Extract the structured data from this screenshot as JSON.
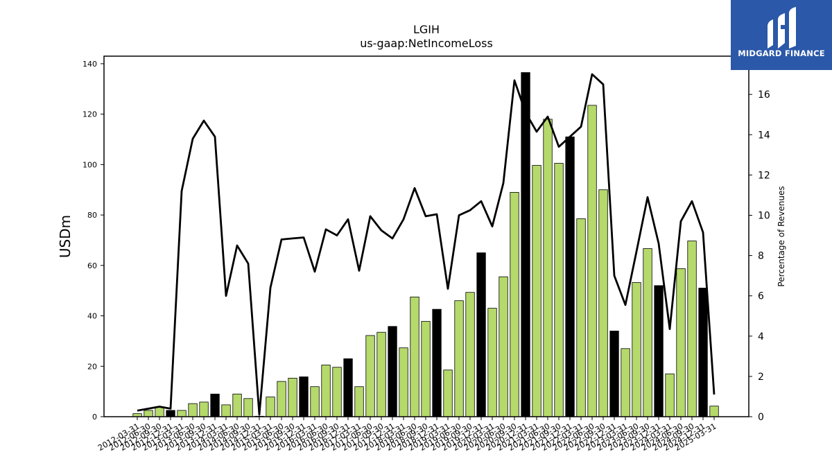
{
  "brand": {
    "name": "MIDGARD FINANCE",
    "logo_icon": "midgard-logo-icon",
    "color": "#2b58a8"
  },
  "chart_data": {
    "type": "bar",
    "title": "LGIH",
    "subtitle": "us-gaap:NetIncomeLoss",
    "ylabel": "USDm",
    "y2label": "Percentage of Revenues",
    "ylim": [
      0,
      143
    ],
    "y2lim": [
      0,
      17.9
    ],
    "yticks": [
      0,
      20,
      40,
      60,
      80,
      100,
      120,
      140
    ],
    "y2ticks": [
      0,
      2,
      4,
      6,
      8,
      10,
      12,
      14,
      16
    ],
    "grid": false,
    "categories": [
      "2012-03-31",
      "2012-06-30",
      "2012-09-30",
      "2012-12-31",
      "2013-03-31",
      "2013-06-30",
      "2013-09-30",
      "2013-12-31",
      "2014-03-31",
      "2014-06-30",
      "2014-09-30",
      "2014-12-31",
      "2015-03-31",
      "2015-06-30",
      "2015-09-30",
      "2015-12-31",
      "2016-03-31",
      "2016-06-30",
      "2016-09-30",
      "2016-12-31",
      "2017-03-31",
      "2017-06-30",
      "2017-09-30",
      "2017-12-31",
      "2018-03-31",
      "2018-06-30",
      "2018-09-30",
      "2018-12-31",
      "2019-03-31",
      "2019-06-30",
      "2019-09-30",
      "2019-12-31",
      "2020-03-31",
      "2020-06-30",
      "2020-09-30",
      "2020-12-31",
      "2021-03-31",
      "2021-06-30",
      "2021-09-30",
      "2021-12-31",
      "2022-03-31",
      "2022-06-30",
      "2022-09-30",
      "2022-12-31",
      "2023-03-31",
      "2023-06-30",
      "2023-09-30",
      "2023-12-31",
      "2024-03-31",
      "2024-06-30",
      "2024-09-30",
      "2024-12-31",
      "2025-03-31"
    ],
    "series": [
      {
        "type": "bar",
        "axis": "left",
        "values": [
          1.2,
          2.5,
          3.8,
          2.5,
          2.5,
          5.2,
          5.8,
          9.0,
          4.7,
          9.0,
          7.2,
          0.2,
          7.8,
          14.0,
          15.3,
          15.8,
          11.9,
          20.5,
          19.6,
          23.0,
          11.9,
          32.2,
          33.5,
          35.8,
          27.3,
          47.5,
          37.8,
          42.6,
          18.5,
          46.0,
          49.3,
          65.0,
          43.0,
          55.5,
          89.0,
          136.5,
          99.7,
          118.0,
          100.5,
          111.0,
          78.5,
          123.5,
          90.0,
          34.0,
          27.0,
          53.2,
          66.7,
          52.0,
          17.0,
          58.7,
          69.7,
          51.0,
          4.2
        ],
        "colors": {
          "quarter": "#b5d96b",
          "year_end": "#000000"
        }
      },
      {
        "type": "line",
        "axis": "right",
        "color": "#000000",
        "values": [
          0.3,
          0.4,
          0.5,
          0.4,
          11.2,
          13.8,
          14.7,
          13.9,
          6.0,
          8.5,
          7.6,
          0.1,
          6.4,
          8.8,
          8.85,
          8.9,
          7.2,
          9.3,
          9.0,
          9.8,
          7.25,
          9.95,
          9.25,
          8.85,
          9.8,
          11.35,
          9.95,
          10.05,
          6.35,
          10.0,
          10.25,
          10.7,
          9.45,
          11.6,
          16.7,
          15.1,
          14.15,
          14.9,
          13.4,
          13.9,
          14.4,
          17.0,
          16.5,
          7.0,
          5.55,
          8.2,
          10.9,
          8.6,
          4.35,
          9.7,
          10.7,
          9.15,
          1.1
        ]
      }
    ]
  }
}
